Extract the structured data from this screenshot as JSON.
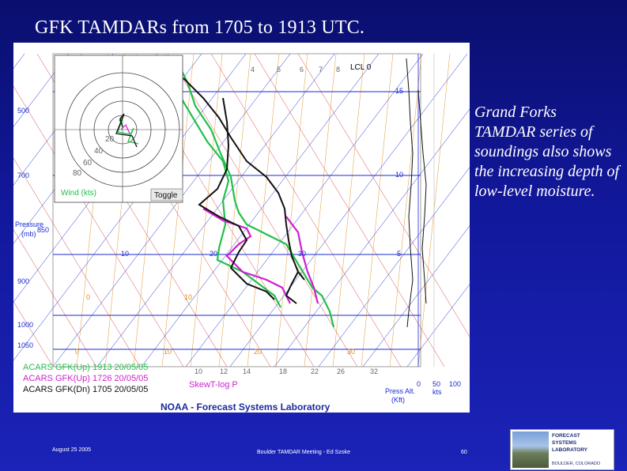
{
  "slide": {
    "title": "GFK TAMDARs from 1705 to 1913 UTC.",
    "caption": "Grand Forks TAMDAR series of soundings also shows the increasing depth of low-level moisture.",
    "footer_date": "August 25 2005",
    "footer_meeting": "Boulder TAMDAR Meeting - Ed Szoke",
    "footer_page": "60"
  },
  "logo": {
    "line1": "FORECAST",
    "line2": "SYSTEMS",
    "line3": "LABORATORY",
    "line4": "BOULDER, COLORADO"
  },
  "skewt": {
    "lcl_label": "LCL 0",
    "mixing_ratio_top_labels": [
      "4",
      "5",
      "6",
      "7",
      "8"
    ],
    "pressure_axis_title_line1": "Pressure",
    "pressure_axis_title_line2": "(mb)",
    "pressure_labels": [
      "500",
      "700",
      "850",
      "900",
      "1000",
      "1050"
    ],
    "temp_labels_upper": [
      "10",
      "20",
      "30"
    ],
    "temp_labels_mid": [
      "0",
      "10"
    ],
    "temp_labels_bottom": [
      "0",
      "10",
      "20",
      "30"
    ],
    "mixing_ratio_bottom_labels": [
      "10",
      "12",
      "14",
      "18",
      "22",
      "26",
      "32"
    ],
    "height_labels": [
      "15",
      "10",
      "5"
    ],
    "wind_speed_axis_labels": [
      "0",
      "50",
      "100"
    ],
    "wind_speed_unit": "kts",
    "press_alt_label_line1": "Press Alt.",
    "press_alt_label_line2": "(Kft)",
    "hodograph_ring_labels": [
      "20",
      "40",
      "60",
      "80"
    ],
    "hodograph_title": "Wind (kts)",
    "toggle_label": "Toggle",
    "legend": [
      {
        "text": "ACARS GFK(Up) 1913 20/05/05",
        "color": "#22c04a"
      },
      {
        "text": "ACARS GFK(Up) 1726 20/05/05",
        "color": "#d01fd0"
      },
      {
        "text": "ACARS GFK(Dn) 1705 20/05/05",
        "color": "#111111"
      }
    ],
    "diagram_name": "SkewT-log P",
    "lab_name": "NOAA - Forecast Systems Laboratory",
    "colors": {
      "isobar": "#1a2bd6",
      "isotherm": "#1a2bd6",
      "dry_adiabat": "#d03030",
      "moist_adiabat": "#e08a1a",
      "mixing_ratio": "#e08a1a",
      "sounding_1913": "#22c04a",
      "sounding_1726": "#d01fd0",
      "sounding_1705": "#111111"
    }
  }
}
